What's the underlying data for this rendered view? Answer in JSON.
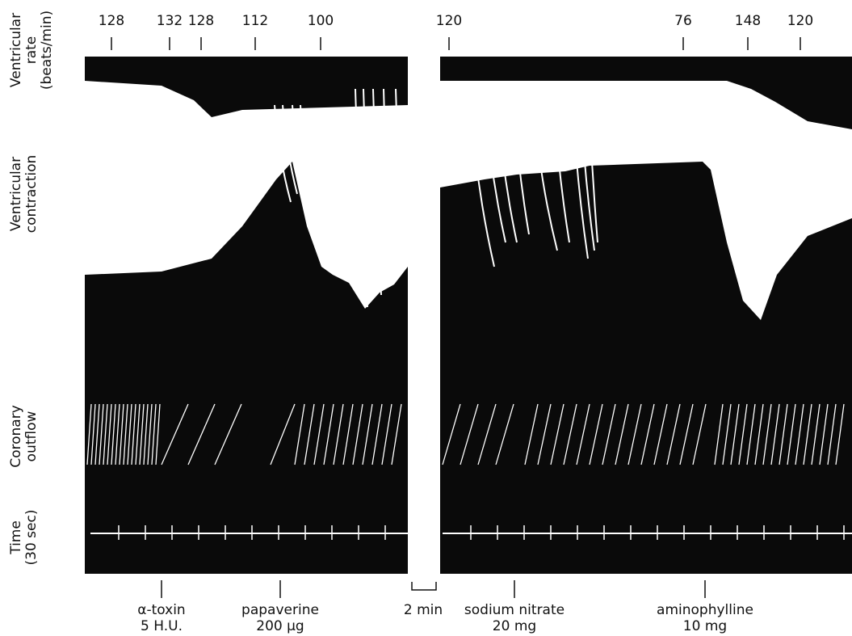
{
  "rate_labels": [
    128,
    132,
    128,
    112,
    100,
    120,
    76,
    148,
    120
  ],
  "trace_labels": [
    {
      "lines": [
        "Ventricular",
        "rate",
        "(beats/min)"
      ]
    },
    {
      "lines": [
        "Ventricular",
        "contraction"
      ]
    },
    {
      "lines": [
        "Coronary",
        "outflow"
      ]
    },
    {
      "lines": [
        "Time",
        "(30 sec)"
      ]
    }
  ],
  "annotations": [
    {
      "lines": [
        "α-toxin",
        "5 H.U."
      ]
    },
    {
      "lines": [
        "papaverine",
        "200 μg"
      ]
    },
    {
      "lines": [
        "sodium nitrate",
        "20 mg"
      ]
    },
    {
      "lines": [
        "aminophylline",
        "10 mg"
      ]
    }
  ],
  "scale_bar": "2 min"
}
